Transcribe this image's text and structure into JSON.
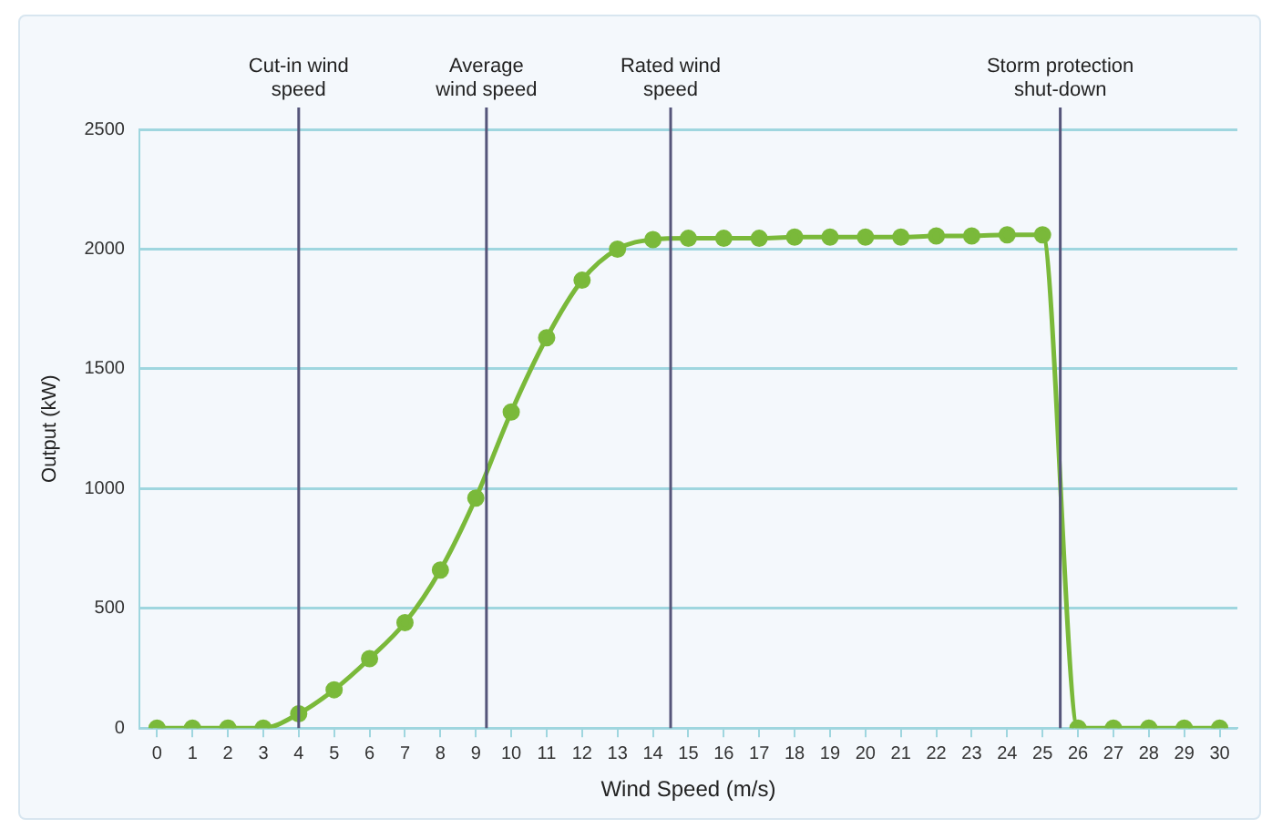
{
  "chart_data": {
    "type": "line",
    "xlabel": "Wind Speed (m/s)",
    "ylabel": "Output (kW)",
    "x": [
      0,
      1,
      2,
      3,
      4,
      5,
      6,
      7,
      8,
      9,
      10,
      11,
      12,
      13,
      14,
      15,
      16,
      17,
      18,
      19,
      20,
      21,
      22,
      23,
      24,
      25,
      26,
      27,
      28,
      29,
      30
    ],
    "series": [
      {
        "color": "#7ab93a",
        "values": [
          0,
          0,
          0,
          0,
          60,
          160,
          290,
          440,
          660,
          960,
          1320,
          1630,
          1870,
          2000,
          2040,
          2045,
          2045,
          2045,
          2050,
          2050,
          2050,
          2050,
          2055,
          2055,
          2060,
          2060,
          0,
          0,
          0,
          0,
          0
        ]
      }
    ],
    "xlim": [
      -0.5,
      30.5
    ],
    "xticks": [
      0,
      1,
      2,
      3,
      4,
      5,
      6,
      7,
      8,
      9,
      10,
      11,
      12,
      13,
      14,
      15,
      16,
      17,
      18,
      19,
      20,
      21,
      22,
      23,
      24,
      25,
      26,
      27,
      28,
      29,
      30
    ],
    "ylim": [
      0,
      2500
    ],
    "yticks": [
      0,
      500,
      1000,
      1500,
      2000,
      2500
    ],
    "ref_lines": [
      {
        "axis": "x",
        "value": 4,
        "label": "Cut-in wind speed",
        "color": "#55557a"
      },
      {
        "axis": "x",
        "value": 9.3,
        "label": "Average wind speed",
        "color": "#55557a"
      },
      {
        "axis": "x",
        "value": 14.5,
        "label": "Rated wind speed",
        "color": "#55557a"
      },
      {
        "axis": "x",
        "value": 25.5,
        "label": "Storm protection shut-down",
        "color": "#55557a"
      }
    ],
    "grid": "y",
    "marker": "circle",
    "line_style": "solid",
    "legend": false
  }
}
